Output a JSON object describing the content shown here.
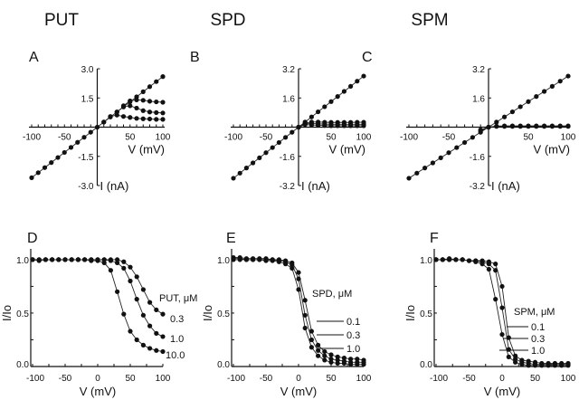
{
  "chart_data": [
    {
      "panel": "A",
      "title": "PUT",
      "type": "line",
      "xlabel": "V (mV)",
      "ylabel": "I (nA)",
      "xlim": [
        -100,
        100
      ],
      "ylim": [
        -3.0,
        3.0
      ],
      "xticks": [
        -100,
        -50,
        50,
        100
      ],
      "yticks": [
        "3.0",
        "1.5",
        "-1.5",
        "-3.0"
      ],
      "ytick_values": [
        3.0,
        1.5,
        -1.5,
        -3.0
      ],
      "series": [
        {
          "x": [
            -100,
            -90,
            -80,
            -70,
            -60,
            -50,
            -40,
            -30,
            -20,
            -10,
            0,
            10,
            20,
            30,
            40,
            50,
            60,
            70,
            80,
            90,
            100
          ],
          "y": [
            -2.6,
            -2.34,
            -2.08,
            -1.82,
            -1.56,
            -1.3,
            -1.04,
            -0.78,
            -0.52,
            -0.26,
            0,
            0.26,
            0.52,
            0.78,
            1.04,
            1.3,
            1.56,
            1.82,
            2.08,
            2.34,
            2.6
          ]
        },
        {
          "x": [
            40,
            50,
            60,
            70,
            80,
            90,
            100
          ],
          "y": [
            1.1,
            1.35,
            1.4,
            1.38,
            1.33,
            1.3,
            1.28
          ]
        },
        {
          "x": [
            30,
            40,
            50,
            60,
            70,
            80,
            90,
            100
          ],
          "y": [
            0.78,
            1.05,
            1.1,
            0.98,
            0.85,
            0.78,
            0.75,
            0.73
          ]
        },
        {
          "x": [
            10,
            20,
            30,
            40,
            50,
            60,
            70,
            80,
            90,
            100
          ],
          "y": [
            0.26,
            0.55,
            0.62,
            0.55,
            0.5,
            0.45,
            0.43,
            0.42,
            0.4,
            0.4
          ]
        }
      ]
    },
    {
      "panel": "B",
      "title": "SPD",
      "type": "line",
      "xlabel": "V (mV)",
      "ylabel": "I (nA)",
      "xlim": [
        -100,
        100
      ],
      "ylim": [
        -3.2,
        3.2
      ],
      "xticks": [
        -100,
        -50,
        50,
        100
      ],
      "yticks": [
        "3.2",
        "1.6",
        "-1.6",
        "-3.2"
      ],
      "ytick_values": [
        3.2,
        1.6,
        -1.6,
        -3.2
      ],
      "series": [
        {
          "x": [
            -100,
            -90,
            -80,
            -70,
            -60,
            -50,
            -40,
            -30,
            -20,
            -10,
            0,
            10,
            20,
            30,
            40,
            50,
            60,
            70,
            80,
            90,
            100
          ],
          "y": [
            -2.8,
            -2.52,
            -2.24,
            -1.96,
            -1.68,
            -1.4,
            -1.12,
            -0.84,
            -0.56,
            -0.28,
            0,
            0.28,
            0.56,
            0.84,
            1.12,
            1.4,
            1.68,
            1.96,
            2.24,
            2.52,
            2.8
          ]
        },
        {
          "x": [
            0,
            10,
            20,
            30,
            40,
            50,
            60,
            70,
            80,
            90,
            100
          ],
          "y": [
            0,
            0.22,
            0.28,
            0.28,
            0.27,
            0.26,
            0.26,
            0.26,
            0.26,
            0.27,
            0.27
          ]
        },
        {
          "x": [
            0,
            10,
            20,
            30,
            40,
            50,
            60,
            70,
            80,
            90,
            100
          ],
          "y": [
            0,
            0.18,
            0.2,
            0.18,
            0.17,
            0.16,
            0.16,
            0.16,
            0.16,
            0.16,
            0.16
          ]
        },
        {
          "x": [
            0,
            10,
            20,
            30,
            40,
            50,
            60,
            70,
            80,
            90,
            100
          ],
          "y": [
            0,
            0.14,
            0.12,
            0.1,
            0.09,
            0.08,
            0.08,
            0.08,
            0.08,
            0.08,
            0.08
          ]
        }
      ]
    },
    {
      "panel": "C",
      "title": "SPM",
      "type": "line",
      "xlabel": "V (mV)",
      "ylabel": "I (nA)",
      "xlim": [
        -100,
        100
      ],
      "ylim": [
        -3.2,
        3.2
      ],
      "xticks": [
        -100,
        -50,
        50,
        100
      ],
      "yticks": [
        "3.2",
        "1.6",
        "-1.6",
        "-3.2"
      ],
      "ytick_values": [
        3.2,
        1.6,
        -1.6,
        -3.2
      ],
      "series": [
        {
          "x": [
            -100,
            -90,
            -80,
            -70,
            -60,
            -50,
            -40,
            -30,
            -20,
            -10,
            0,
            10,
            20,
            30,
            40,
            50,
            60,
            70,
            80,
            90,
            100
          ],
          "y": [
            -2.8,
            -2.52,
            -2.24,
            -1.96,
            -1.68,
            -1.4,
            -1.12,
            -0.84,
            -0.56,
            -0.28,
            0,
            0.28,
            0.56,
            0.84,
            1.12,
            1.4,
            1.68,
            1.96,
            2.24,
            2.52,
            2.8
          ]
        },
        {
          "x": [
            -10,
            0,
            10,
            20,
            30,
            40,
            50,
            60,
            70,
            80,
            90,
            100
          ],
          "y": [
            -0.2,
            0,
            0.06,
            0.07,
            0.07,
            0.07,
            0.07,
            0.07,
            0.07,
            0.07,
            0.07,
            0.07
          ]
        },
        {
          "x": [
            -10,
            0,
            10,
            20,
            30,
            40,
            50,
            60,
            70,
            80,
            90,
            100
          ],
          "y": [
            -0.15,
            0,
            0.04,
            0.04,
            0.04,
            0.04,
            0.04,
            0.04,
            0.04,
            0.04,
            0.04,
            0.04
          ]
        }
      ]
    },
    {
      "panel": "D",
      "type": "line",
      "xlabel": "V (mV)",
      "ylabel": "I/Io",
      "xlim": [
        -100,
        100
      ],
      "ylim": [
        0,
        1.05
      ],
      "xticks": [
        -100,
        -50,
        0,
        50,
        100
      ],
      "yticks": [
        "0.0",
        "0.5",
        "1.0"
      ],
      "ytick_values": [
        0,
        0.5,
        1.0
      ],
      "legend_title": "PUT, μM",
      "series": [
        {
          "name": "0.3",
          "x": [
            -100,
            -90,
            -80,
            -70,
            -60,
            -50,
            -40,
            -30,
            -20,
            -10,
            0,
            10,
            20,
            30,
            40,
            50,
            60,
            70,
            80,
            90,
            100
          ],
          "y": [
            1,
            1,
            1,
            1,
            1,
            1,
            1,
            1,
            1,
            1,
            1,
            1,
            1,
            1,
            0.98,
            0.93,
            0.84,
            0.72,
            0.6,
            0.53,
            0.49
          ]
        },
        {
          "name": "1.0",
          "x": [
            -100,
            -90,
            -80,
            -70,
            -60,
            -50,
            -40,
            -30,
            -20,
            -10,
            0,
            10,
            20,
            30,
            40,
            50,
            60,
            70,
            80,
            90,
            100
          ],
          "y": [
            1,
            1,
            1,
            1,
            1,
            1,
            1,
            1,
            1,
            1,
            1,
            1,
            0.99,
            0.97,
            0.92,
            0.8,
            0.63,
            0.48,
            0.38,
            0.31,
            0.28
          ]
        },
        {
          "name": "10.0",
          "x": [
            -100,
            -90,
            -80,
            -70,
            -60,
            -50,
            -40,
            -30,
            -20,
            -10,
            0,
            10,
            20,
            30,
            40,
            50,
            60,
            70,
            80,
            90,
            100
          ],
          "y": [
            1,
            0.99,
            1,
            1,
            1,
            1,
            1,
            1,
            1,
            0.99,
            0.99,
            0.97,
            0.9,
            0.7,
            0.49,
            0.33,
            0.25,
            0.2,
            0.17,
            0.15,
            0.14
          ]
        }
      ]
    },
    {
      "panel": "E",
      "type": "line",
      "xlabel": "V (mV)",
      "ylabel": "I/Io",
      "xlim": [
        -100,
        100
      ],
      "ylim": [
        0,
        1.05
      ],
      "xticks": [
        -100,
        -50,
        0,
        50,
        100
      ],
      "yticks": [
        "0.0",
        "0.5",
        "1.0"
      ],
      "ytick_values": [
        0,
        0.5,
        1.0
      ],
      "legend_title": "SPD, μM",
      "series": [
        {
          "name": "0.1",
          "x": [
            -100,
            -90,
            -80,
            -70,
            -60,
            -50,
            -40,
            -30,
            -20,
            -10,
            0,
            10,
            20,
            30,
            40,
            50,
            60,
            70,
            80,
            90,
            100
          ],
          "y": [
            1.02,
            1.02,
            1.01,
            1.01,
            1.01,
            1.01,
            1,
            1,
            0.99,
            0.97,
            0.88,
            0.62,
            0.33,
            0.2,
            0.14,
            0.11,
            0.09,
            0.08,
            0.07,
            0.07,
            0.06
          ]
        },
        {
          "name": "0.3",
          "x": [
            -100,
            -90,
            -80,
            -70,
            -60,
            -50,
            -40,
            -30,
            -20,
            -10,
            0,
            10,
            20,
            30,
            40,
            50,
            60,
            70,
            80,
            90,
            100
          ],
          "y": [
            1.01,
            1.01,
            1,
            1,
            1,
            1,
            1,
            0.99,
            0.98,
            0.95,
            0.82,
            0.48,
            0.25,
            0.15,
            0.1,
            0.07,
            0.06,
            0.05,
            0.04,
            0.04,
            0.04
          ]
        },
        {
          "name": "1.0",
          "x": [
            -100,
            -90,
            -80,
            -70,
            -60,
            -50,
            -40,
            -30,
            -20,
            -10,
            0,
            10,
            20,
            30,
            40,
            50,
            60,
            70,
            80,
            90,
            100
          ],
          "y": [
            1,
            1,
            1,
            1,
            1,
            0.99,
            0.99,
            0.98,
            0.96,
            0.92,
            0.72,
            0.36,
            0.18,
            0.1,
            0.06,
            0.04,
            0.03,
            0.03,
            0.02,
            0.02,
            0.02
          ]
        }
      ]
    },
    {
      "panel": "F",
      "type": "line",
      "xlabel": "V (mV)",
      "ylabel": "I/Io",
      "xlim": [
        -100,
        100
      ],
      "ylim": [
        0,
        1.05
      ],
      "xticks": [
        -100,
        -50,
        0,
        50,
        100
      ],
      "yticks": [
        "0.0",
        "0.5",
        "1.0"
      ],
      "ytick_values": [
        0,
        0.5,
        1.0
      ],
      "legend_title": "SPM, μM",
      "series": [
        {
          "name": "0.1",
          "x": [
            -100,
            -90,
            -80,
            -70,
            -60,
            -50,
            -40,
            -30,
            -20,
            -10,
            0,
            10,
            20,
            30,
            40,
            50,
            60,
            70,
            80,
            90,
            100
          ],
          "y": [
            1,
            1,
            1.01,
            1,
            1,
            0.99,
            0.99,
            0.99,
            0.98,
            0.96,
            0.75,
            0.27,
            0.1,
            0.06,
            0.05,
            0.04,
            0.03,
            0.03,
            0.03,
            0.03,
            0.03
          ]
        },
        {
          "name": "0.3",
          "x": [
            -100,
            -90,
            -80,
            -70,
            -60,
            -50,
            -40,
            -30,
            -20,
            -10,
            0,
            10,
            20,
            30,
            40,
            50,
            60,
            70,
            80,
            90,
            100
          ],
          "y": [
            1,
            1,
            1,
            1,
            1,
            0.99,
            0.99,
            0.98,
            0.96,
            0.9,
            0.55,
            0.16,
            0.07,
            0.04,
            0.03,
            0.02,
            0.02,
            0.02,
            0.02,
            0.02,
            0.02
          ]
        },
        {
          "name": "1.0",
          "x": [
            -100,
            -90,
            -80,
            -70,
            -60,
            -50,
            -40,
            -30,
            -20,
            -10,
            0,
            10,
            20,
            30,
            40,
            50,
            60,
            70,
            80,
            90,
            100
          ],
          "y": [
            1,
            1,
            1,
            1,
            1,
            0.99,
            0.98,
            0.96,
            0.91,
            0.63,
            0.3,
            0.09,
            0.04,
            0.02,
            0.01,
            0.01,
            0.01,
            0.01,
            0.01,
            0.01,
            0.01
          ]
        }
      ]
    }
  ]
}
